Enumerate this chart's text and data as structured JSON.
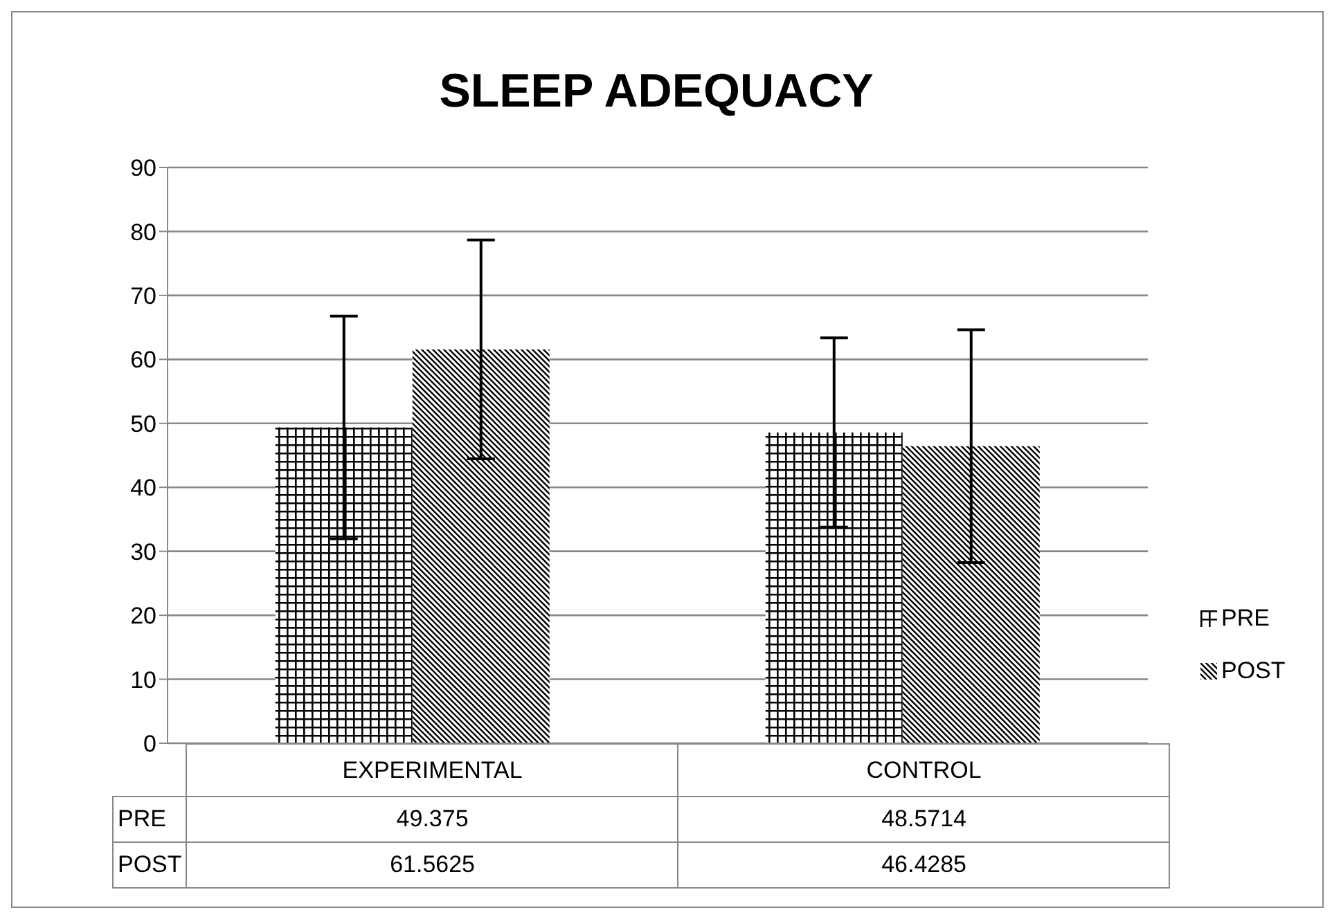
{
  "chart_data": {
    "type": "bar",
    "title": "SLEEP ADEQUACY",
    "categories": [
      "EXPERIMENTAL",
      "CONTROL"
    ],
    "series": [
      {
        "name": "PRE",
        "color": "#000000",
        "values": [
          49.375,
          48.5714
        ],
        "errors": [
          17.4,
          14.8
        ]
      },
      {
        "name": "POST",
        "color": "#000000",
        "values": [
          61.5625,
          46.4285
        ],
        "errors": [
          17.1,
          18.2
        ]
      }
    ],
    "ylim": [
      0,
      90
    ],
    "yticks": [
      0,
      10,
      20,
      30,
      40,
      50,
      60,
      70,
      80,
      90
    ],
    "grid": "y",
    "legend": "right",
    "data_labels": true
  }
}
